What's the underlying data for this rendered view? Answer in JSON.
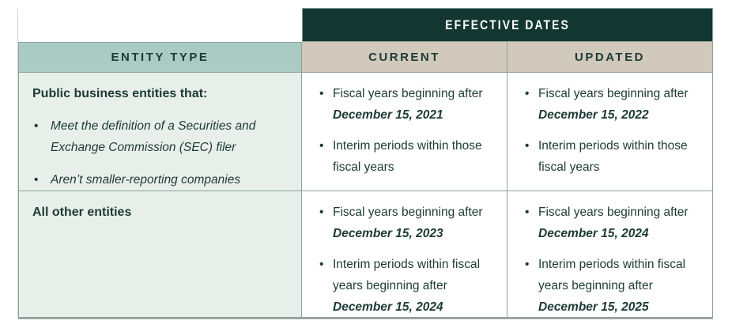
{
  "header": {
    "effective_dates": "EFFECTIVE DATES",
    "entity_type": "ENTITY TYPE",
    "current": "CURRENT",
    "updated": "UPDATED"
  },
  "rows": [
    {
      "entity": {
        "title": "Public business entities that:",
        "bullets": [
          "Meet the definition of a Securities and Exchange Commission (SEC) filer",
          "Aren’t smaller-reporting companies"
        ]
      },
      "current": [
        {
          "text": "Fiscal years beginning after ",
          "date": "December 15, 2021"
        },
        {
          "text": "Interim periods within those fiscal years",
          "date": ""
        }
      ],
      "updated": [
        {
          "text": "Fiscal years beginning after ",
          "date": "December 15, 2022"
        },
        {
          "text": "Interim periods within those fiscal years",
          "date": ""
        }
      ]
    },
    {
      "entity": {
        "title": "All other entities",
        "bullets": []
      },
      "current": [
        {
          "text": "Fiscal years beginning after ",
          "date": "December 15, 2023"
        },
        {
          "text": "Interim periods within fiscal years beginning after ",
          "date": "December 15, 2024"
        }
      ],
      "updated": [
        {
          "text": "Fiscal years beginning after ",
          "date": "December 15, 2024"
        },
        {
          "text": "Interim periods within fiscal years beginning after ",
          "date": "December 15, 2025"
        }
      ]
    }
  ],
  "colors": {
    "banner_background": "#123630",
    "entity_header_background": "#aacac4",
    "dates_header_background": "#d0c9bc",
    "entity_column_background": "#e8efeb",
    "text": "#1d3b33",
    "border": "#8fa09b"
  }
}
